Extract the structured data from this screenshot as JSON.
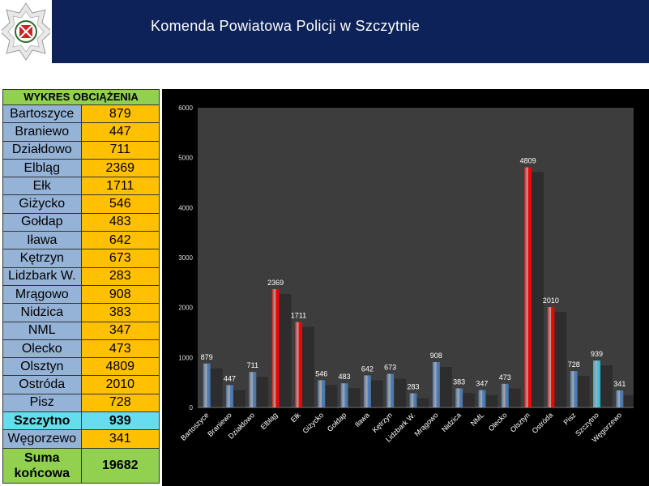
{
  "header": {
    "title": "Komenda Powiatowa Policji w Szczytnie"
  },
  "table": {
    "header": "WYKRES OBCIĄŻENIA",
    "rows": [
      {
        "name": "Bartoszyce",
        "value": "879"
      },
      {
        "name": "Braniewo",
        "value": "447"
      },
      {
        "name": "Działdowo",
        "value": "711"
      },
      {
        "name": "Elbląg",
        "value": "2369"
      },
      {
        "name": "Ełk",
        "value": "1711"
      },
      {
        "name": "Giżycko",
        "value": "546"
      },
      {
        "name": "Gołdap",
        "value": "483"
      },
      {
        "name": "Iława",
        "value": "642"
      },
      {
        "name": "Kętrzyn",
        "value": "673"
      },
      {
        "name": "Lidzbark W.",
        "value": "283"
      },
      {
        "name": "Mrągowo",
        "value": "908"
      },
      {
        "name": "Nidzica",
        "value": "383"
      },
      {
        "name": "NML",
        "value": "347"
      },
      {
        "name": "Olecko",
        "value": "473"
      },
      {
        "name": "Olsztyn",
        "value": "4809"
      },
      {
        "name": "Ostróda",
        "value": "2010"
      },
      {
        "name": "Pisz",
        "value": "728"
      },
      {
        "name": "Szczytno",
        "value": "939"
      },
      {
        "name": "Węgorzewo",
        "value": "341"
      }
    ],
    "total_label": "Suma końcowa",
    "total_value": "19682"
  },
  "chart_data": {
    "type": "bar",
    "title": "",
    "xlabel": "",
    "ylabel": "",
    "categories": [
      "Bartoszyce",
      "Braniewo",
      "Działdowo",
      "Elbląg",
      "Ełk",
      "Giżycko",
      "Gołdap",
      "Iława",
      "Kętrzyn",
      "Lidzbark W.",
      "Mrągowo",
      "Nidzica",
      "NML",
      "Olecko",
      "Olsztyn",
      "Ostróda",
      "Pisz",
      "Szczytno",
      "Węgorzewo"
    ],
    "values": [
      879,
      447,
      711,
      2369,
      1711,
      546,
      483,
      642,
      673,
      283,
      908,
      383,
      347,
      473,
      4809,
      2010,
      728,
      939,
      341
    ],
    "value_labels": [
      "879",
      "447",
      "711",
      "2369",
      "1711",
      "546",
      "483",
      "642",
      "673",
      "283",
      "908",
      "383",
      "347",
      "473",
      "4809",
      "2010",
      "728",
      "939",
      "341"
    ],
    "ylim": [
      0,
      6000
    ],
    "yticks": [
      0,
      1000,
      2000,
      3000,
      4000,
      5000,
      6000
    ],
    "colors": [
      "#4f81bd",
      "#4f81bd",
      "#4f81bd",
      "#ff0000",
      "#ff0000",
      "#4f81bd",
      "#4f81bd",
      "#4f81bd",
      "#4f81bd",
      "#4f81bd",
      "#4f81bd",
      "#4f81bd",
      "#4f81bd",
      "#4f81bd",
      "#ff0000",
      "#ff0000",
      "#4f81bd",
      "#33ccee",
      "#4f81bd"
    ],
    "plot_bg": "#3d3d3d",
    "grid": false,
    "legend": "none"
  }
}
